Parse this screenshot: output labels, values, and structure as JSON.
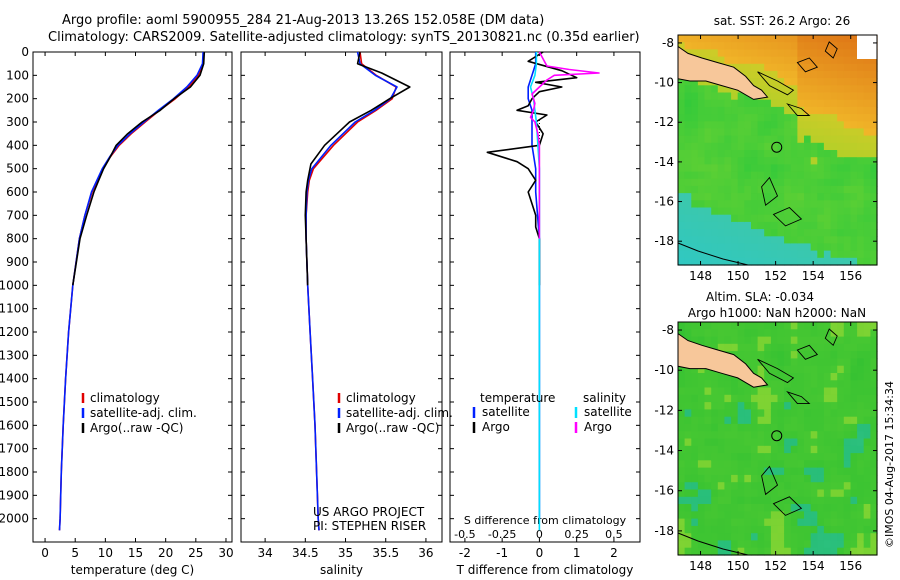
{
  "figure": {
    "title_line1": "Argo profile: aoml 5900955_284 21-Aug-2013 13.26S 152.058E (DM data)",
    "title_line2": "Climatology: CARS2009. Satellite-adjusted climatology: synTS_20130821.nc (0.35d earlier)",
    "timestamp": "©IMOS 04-Aug-2017 15:34:34",
    "project_line1": "US ARGO PROJECT",
    "project_line2": "PI: STEPHEN RISER",
    "colors": {
      "climatology": "#e00000",
      "satellite": "#0020ff",
      "argo": "#000000",
      "satellite_s": "#00e0ff",
      "argo_s": "#ff00ff",
      "land": "#f7c79a"
    }
  },
  "chart_data": [
    {
      "type": "line",
      "id": "temperature",
      "xlabel": "temperature (deg C)",
      "ylabel": "",
      "xlim": [
        -2,
        31
      ],
      "ylim": [
        2100,
        0
      ],
      "x_ticks": [
        0,
        5,
        10,
        15,
        20,
        25,
        30
      ],
      "y_ticks": [
        0,
        100,
        200,
        300,
        400,
        500,
        600,
        700,
        800,
        900,
        1000,
        1100,
        1200,
        1300,
        1400,
        1500,
        1600,
        1700,
        1800,
        1900,
        2000
      ],
      "legend": [
        "climatology",
        "satellite-adj. clim.",
        "Argo(..raw -QC)"
      ],
      "series": [
        {
          "name": "climatology",
          "depth": [
            0,
            50,
            100,
            150,
            200,
            250,
            300,
            350,
            400,
            450,
            500,
            600,
            700,
            800,
            1000,
            1200,
            1400,
            1600,
            1800,
            2000,
            2050
          ],
          "values": [
            26.3,
            26.2,
            25.4,
            23.8,
            21.6,
            19.0,
            16.6,
            14.3,
            12.3,
            10.8,
            9.6,
            7.8,
            6.6,
            5.7,
            4.6,
            3.9,
            3.4,
            3.0,
            2.7,
            2.5,
            2.4
          ]
        },
        {
          "name": "satellite-adj. clim.",
          "depth": [
            0,
            50,
            100,
            150,
            200,
            250,
            300,
            350,
            400,
            450,
            500,
            600,
            700,
            800,
            1000,
            1200,
            1400,
            1600,
            1800,
            2000,
            2050
          ],
          "values": [
            26.2,
            26.1,
            25.2,
            23.5,
            21.3,
            18.8,
            16.4,
            14.1,
            12.1,
            10.7,
            9.5,
            7.7,
            6.6,
            5.7,
            4.6,
            3.9,
            3.4,
            3.0,
            2.7,
            2.5,
            2.4
          ]
        },
        {
          "name": "Argo",
          "depth": [
            0,
            50,
            100,
            150,
            200,
            250,
            300,
            350,
            400,
            450,
            500,
            550,
            600,
            700,
            800,
            900,
            1000
          ],
          "values": [
            26.4,
            26.3,
            25.7,
            24.1,
            21.4,
            19.1,
            16.1,
            13.7,
            11.8,
            10.8,
            9.7,
            8.9,
            8.1,
            6.9,
            5.8,
            5.2,
            4.6
          ]
        }
      ]
    },
    {
      "type": "line",
      "id": "salinity",
      "xlabel": "salinity",
      "ylabel": "",
      "xlim": [
        33.7,
        36.2
      ],
      "ylim": [
        2100,
        0
      ],
      "x_ticks": [
        34,
        34.5,
        35,
        35.5,
        36
      ],
      "legend": [
        "climatology",
        "satellite-adj. clim.",
        "Argo(..raw -QC)"
      ],
      "series": [
        {
          "name": "climatology",
          "depth": [
            0,
            50,
            100,
            150,
            200,
            250,
            300,
            400,
            500,
            550,
            600,
            700,
            800,
            1000,
            1200,
            1400,
            1600,
            1800,
            2000,
            2050
          ],
          "values": [
            35.18,
            35.2,
            35.38,
            35.63,
            35.58,
            35.38,
            35.15,
            34.85,
            34.6,
            34.55,
            34.53,
            34.51,
            34.51,
            34.53,
            34.56,
            34.59,
            34.62,
            34.64,
            34.66,
            34.67
          ]
        },
        {
          "name": "satellite-adj. clim.",
          "depth": [
            0,
            50,
            100,
            150,
            200,
            250,
            300,
            400,
            500,
            550,
            600,
            700,
            800,
            1000,
            1200,
            1400,
            1600,
            1800,
            2000,
            2050
          ],
          "values": [
            35.15,
            35.18,
            35.37,
            35.64,
            35.56,
            35.36,
            35.12,
            34.82,
            34.58,
            34.54,
            34.52,
            34.51,
            34.51,
            34.53,
            34.56,
            34.59,
            34.62,
            34.64,
            34.66,
            34.67
          ]
        },
        {
          "name": "Argo",
          "depth": [
            0,
            50,
            90,
            150,
            200,
            250,
            300,
            400,
            480,
            550,
            600,
            700,
            800,
            900,
            1000
          ],
          "values": [
            35.18,
            35.15,
            35.45,
            35.8,
            35.55,
            35.32,
            35.05,
            34.74,
            34.57,
            34.53,
            34.51,
            34.5,
            34.51,
            34.52,
            34.53
          ]
        }
      ]
    },
    {
      "type": "line",
      "id": "difference",
      "xlabel": "T difference from climatology",
      "xlabel_top": "S difference from climatology",
      "xlim": [
        -2.4,
        2.7
      ],
      "ylim": [
        2100,
        0
      ],
      "x_ticks": [
        -2,
        -1,
        0,
        1,
        2
      ],
      "x_ticks_top": [
        -0.5,
        -0.25,
        0,
        0.25,
        0.5
      ],
      "legend_temperature": [
        "temperature",
        "satellite",
        "Argo"
      ],
      "legend_salinity": [
        "salinity",
        "satellite",
        "Argo"
      ],
      "series": [
        {
          "name": "T satellite",
          "depth": [
            0,
            50,
            100,
            150,
            200,
            250,
            300,
            400,
            500,
            600,
            800,
            1000,
            2000
          ],
          "values": [
            -0.1,
            -0.1,
            -0.2,
            -0.3,
            -0.3,
            -0.2,
            -0.2,
            -0.2,
            -0.1,
            -0.1,
            0,
            0,
            0
          ]
        },
        {
          "name": "T Argo",
          "depth": [
            0,
            40,
            80,
            110,
            130,
            150,
            170,
            200,
            230,
            250,
            270,
            300,
            350,
            400,
            430,
            470,
            500,
            550,
            600,
            650,
            700,
            750,
            800,
            850,
            900,
            1000
          ],
          "values": [
            0.1,
            -0.3,
            0.6,
            1.0,
            -0.1,
            0.6,
            0.0,
            -0.2,
            -0.3,
            -0.6,
            0.2,
            -0.1,
            0.1,
            0.0,
            -1.4,
            -0.6,
            -0.3,
            -0.1,
            -0.3,
            -0.2,
            -0.1,
            -0.1,
            0.0,
            0.0,
            0.0,
            0.0
          ]
        },
        {
          "name": "S satellite",
          "depth": [
            0,
            50,
            100,
            150,
            200,
            250,
            300,
            400,
            500,
            800,
            1000,
            1500,
            2000,
            2050
          ],
          "values": [
            -0.02,
            -0.02,
            -0.03,
            -0.06,
            -0.04,
            -0.03,
            -0.02,
            -0.01,
            0,
            0,
            0,
            0,
            0,
            0
          ]
        },
        {
          "name": "S Argo",
          "depth": [
            0,
            60,
            75,
            90,
            100,
            120,
            150,
            180,
            200,
            220,
            250,
            280,
            300,
            350,
            400,
            450,
            500,
            600,
            800
          ],
          "values": [
            0.0,
            0.05,
            0.2,
            0.4,
            0.1,
            0.05,
            0.0,
            -0.05,
            -0.04,
            -0.03,
            -0.04,
            -0.06,
            -0.03,
            -0.01,
            0.0,
            0.0,
            0.0,
            0.0,
            0.0
          ]
        }
      ]
    },
    {
      "type": "heatmap",
      "id": "sst-map",
      "title": "sat. SST: 26.2 Argo: 26",
      "x_ticks": [
        148,
        150,
        152,
        154,
        156
      ],
      "y_ticks": [
        -8,
        -10,
        -12,
        -14,
        -16,
        -18
      ],
      "xlim": [
        146.8,
        157.4
      ],
      "ylim": [
        -19.2,
        -7.6
      ],
      "marker": {
        "lon": 152.06,
        "lat": -13.26
      }
    },
    {
      "type": "heatmap",
      "id": "sla-map",
      "title_line1": "Altim. SLA: -0.034",
      "title_line2": "Argo h1000: NaN h2000: NaN",
      "x_ticks": [
        148,
        150,
        152,
        154,
        156
      ],
      "y_ticks": [
        -8,
        -10,
        -12,
        -14,
        -16,
        -18
      ],
      "xlim": [
        146.8,
        157.4
      ],
      "ylim": [
        -19.2,
        -7.6
      ],
      "marker": {
        "lon": 152.06,
        "lat": -13.26
      }
    }
  ]
}
